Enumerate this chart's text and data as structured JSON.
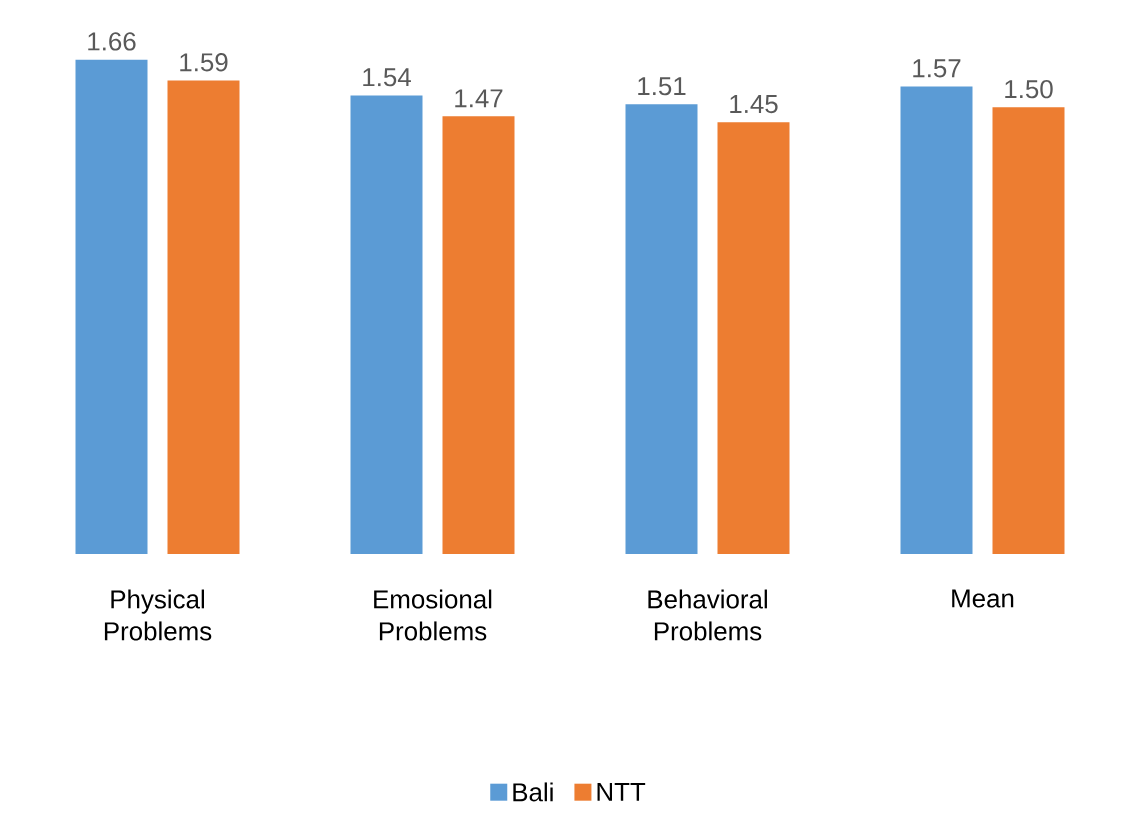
{
  "chart_data": {
    "type": "bar",
    "categories": [
      "Physical Problems",
      "Emosional Problems",
      "Behavioral Problems",
      "Mean"
    ],
    "series": [
      {
        "name": "Bali",
        "color": "#5b9bd5",
        "values": [
          1.66,
          1.54,
          1.51,
          1.57
        ],
        "value_labels": [
          "1.66",
          "1.54",
          "1.51",
          "1.57"
        ]
      },
      {
        "name": "NTT",
        "color": "#ed7d31",
        "values": [
          1.59,
          1.47,
          1.45,
          1.5
        ],
        "value_labels": [
          "1.59",
          "1.47",
          "1.45",
          "1.50"
        ]
      }
    ],
    "tick_labels": "x",
    "legend": "bottom",
    "grid": false
  }
}
